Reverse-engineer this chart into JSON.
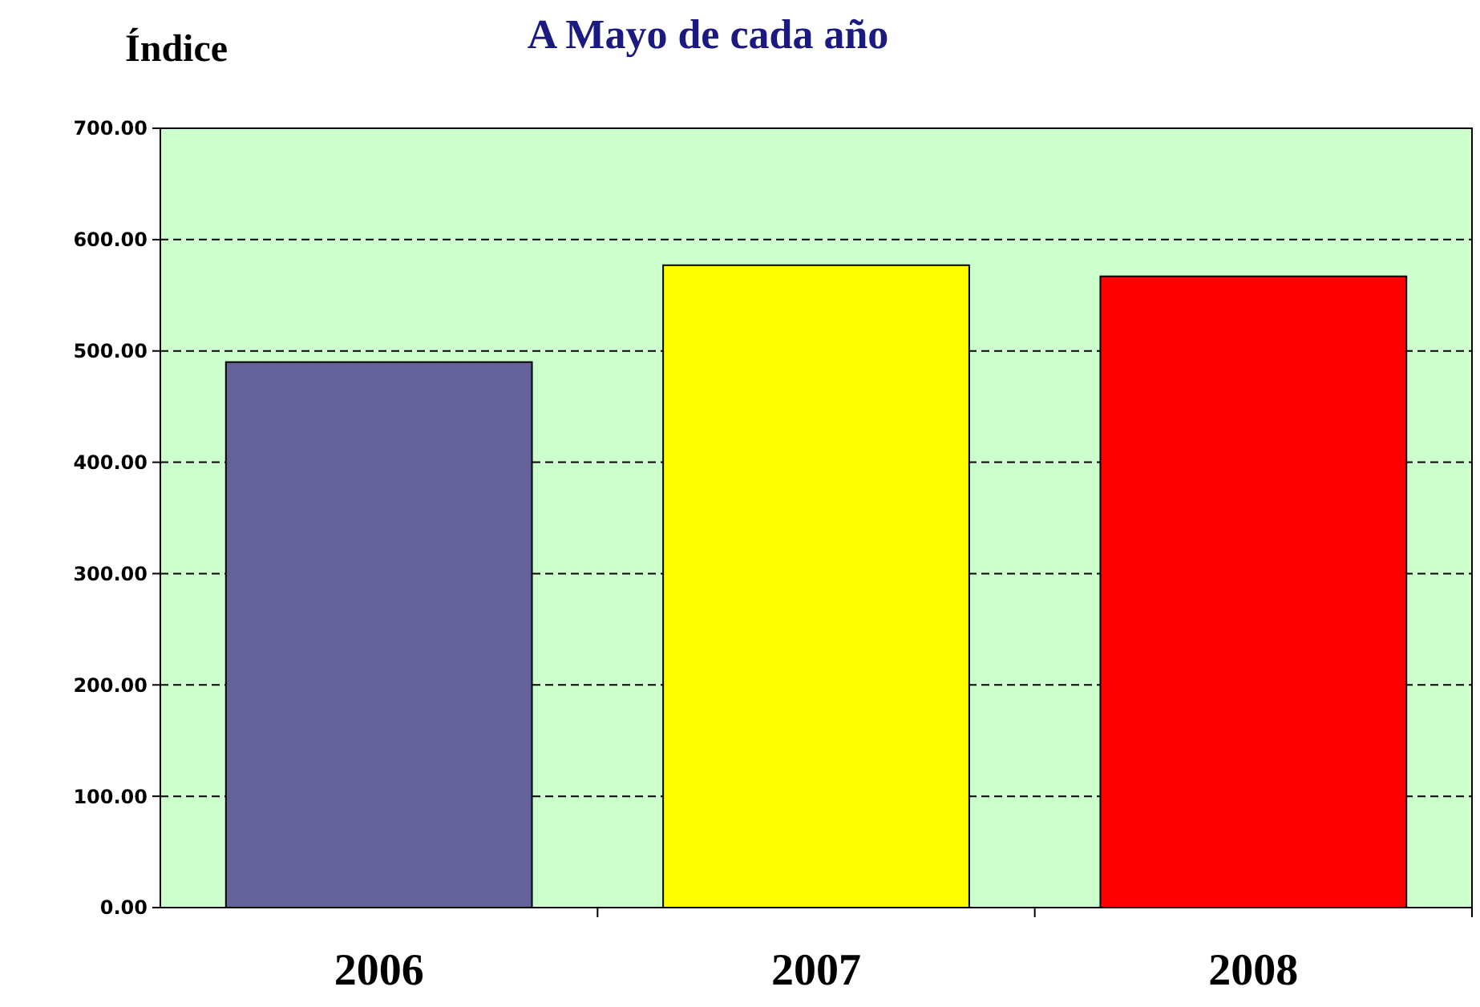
{
  "chart_data": {
    "type": "bar",
    "title": "A Mayo de cada año",
    "ylabel": "Índice",
    "categories": [
      "2006",
      "2007",
      "2008"
    ],
    "values": [
      490,
      577,
      567
    ],
    "colors": [
      "#636399",
      "#ffff00",
      "#ff0000"
    ],
    "ylim": [
      0,
      700
    ],
    "yticks": [
      {
        "value": 0,
        "label": "0.00"
      },
      {
        "value": 100,
        "label": "100.00"
      },
      {
        "value": 200,
        "label": "200.00"
      },
      {
        "value": 300,
        "label": "300.00"
      },
      {
        "value": 400,
        "label": "400.00"
      },
      {
        "value": 500,
        "label": "500.00"
      },
      {
        "value": 600,
        "label": "600.00"
      },
      {
        "value": 700,
        "label": "700.00"
      }
    ],
    "grid": "y"
  }
}
